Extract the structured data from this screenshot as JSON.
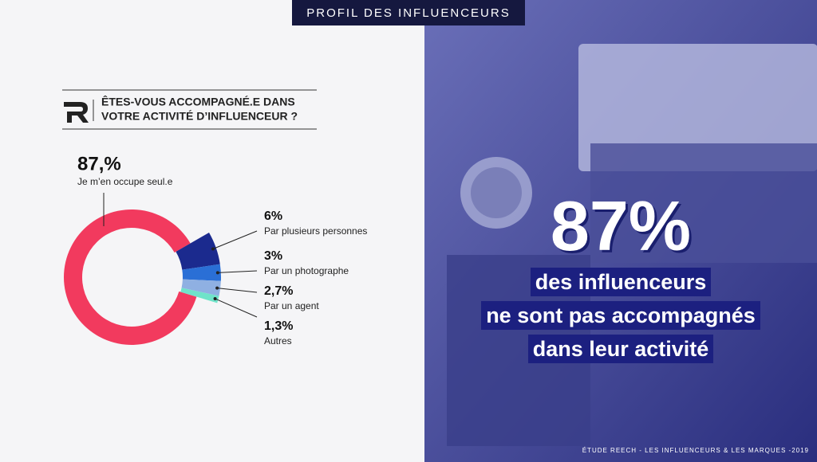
{
  "header": {
    "title": "PROFIL DES INFLUENCEURS"
  },
  "question": {
    "lines": [
      "ÊTES-VOUS ACCOMPAGNÉ.E DANS",
      "VOTRE ACTIVITÉ D’INFLUENCEUR ?"
    ]
  },
  "chart_data": {
    "type": "pie",
    "donut": true,
    "categories": [
      "Je m’en occupe seul.e",
      "Par plusieurs personnes",
      "Par un photographe",
      "Par un agent",
      "Autres"
    ],
    "values": [
      87,
      6,
      3,
      2.7,
      1.3
    ],
    "value_labels": [
      "87,%",
      "6%",
      "3%",
      "2,7%",
      "1,3%"
    ],
    "colors": [
      "#f23a5e",
      "#1b2a8e",
      "#2a6fd6",
      "#8fb0e2",
      "#6fe3c9"
    ]
  },
  "callout": {
    "stat": "87%",
    "lines": [
      "des influenceurs",
      "ne sont pas accompagnés",
      "dans leur activité"
    ]
  },
  "footer": "ÉTUDE REECH - LES INFLUENCEURS & LES MARQUES -2019"
}
